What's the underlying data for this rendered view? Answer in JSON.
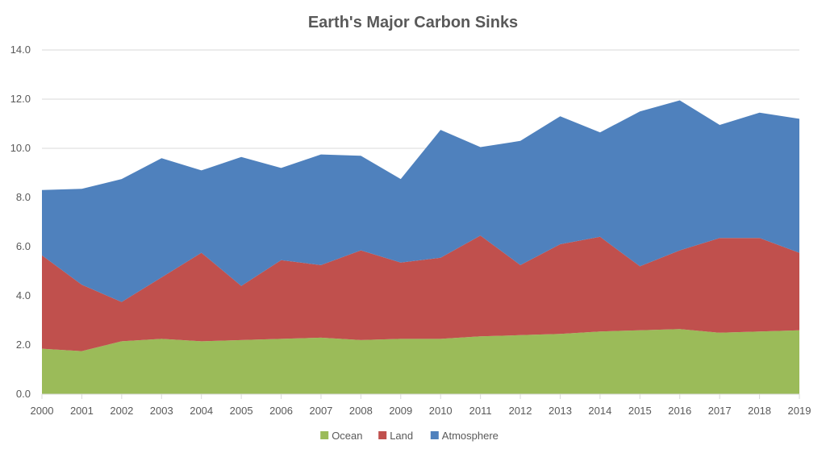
{
  "chart_data": {
    "type": "area",
    "stacked": true,
    "title": "Earth's Major Carbon Sinks",
    "xlabel": "",
    "ylabel": "",
    "ylim": [
      0,
      14
    ],
    "yticks": [
      "0.0",
      "2.0",
      "4.0",
      "6.0",
      "8.0",
      "10.0",
      "12.0",
      "14.0"
    ],
    "grid": true,
    "legend_position": "bottom",
    "categories": [
      "2000",
      "2001",
      "2002",
      "2003",
      "2004",
      "2005",
      "2006",
      "2007",
      "2008",
      "2009",
      "2010",
      "2011",
      "2012",
      "2013",
      "2014",
      "2015",
      "2016",
      "2017",
      "2018",
      "2019"
    ],
    "series": [
      {
        "name": "Ocean",
        "color": "#9bbb59",
        "values": [
          1.85,
          1.75,
          2.15,
          2.25,
          2.15,
          2.2,
          2.25,
          2.3,
          2.2,
          2.25,
          2.25,
          2.35,
          2.4,
          2.45,
          2.55,
          2.6,
          2.65,
          2.5,
          2.55,
          2.6
        ]
      },
      {
        "name": "Land",
        "color": "#c0504d",
        "values": [
          3.8,
          2.7,
          1.6,
          2.5,
          3.6,
          2.2,
          3.2,
          2.95,
          3.65,
          3.1,
          3.3,
          4.1,
          2.85,
          3.65,
          3.85,
          2.6,
          3.2,
          3.85,
          3.8,
          3.15
        ]
      },
      {
        "name": "Atmosphere",
        "color": "#4f81bd",
        "values": [
          2.65,
          3.9,
          5.0,
          4.85,
          3.35,
          5.25,
          3.75,
          4.5,
          3.85,
          3.4,
          5.2,
          3.6,
          5.05,
          5.2,
          4.25,
          6.3,
          6.1,
          4.6,
          5.1,
          5.45
        ]
      }
    ]
  }
}
